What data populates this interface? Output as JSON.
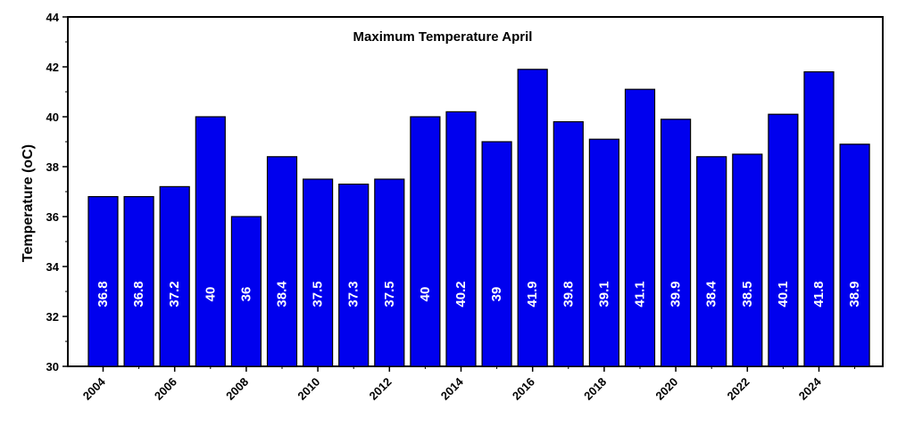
{
  "chart_data": {
    "type": "bar",
    "title": "Maximum Temperature April",
    "xlabel": "",
    "ylabel": "Temperature (oC)",
    "ylim": [
      30,
      44
    ],
    "yticks": [
      30,
      32,
      34,
      36,
      38,
      40,
      42,
      44
    ],
    "categories": [
      "2004",
      "2005",
      "2006",
      "2007",
      "2008",
      "2009",
      "2010",
      "2011",
      "2012",
      "2013",
      "2014",
      "2015",
      "2016",
      "2017",
      "2018",
      "2019",
      "2020",
      "2021",
      "2022",
      "2023",
      "2024",
      "2025"
    ],
    "xtick_labels": [
      "2004",
      "2006",
      "2008",
      "2010",
      "2012",
      "2014",
      "2016",
      "2018",
      "2020",
      "2022",
      "2024"
    ],
    "values": [
      36.8,
      36.8,
      37.2,
      40,
      36,
      38.4,
      37.5,
      37.3,
      37.5,
      40,
      40.2,
      39,
      41.9,
      39.8,
      39.1,
      41.1,
      39.9,
      38.4,
      38.5,
      40.1,
      41.8,
      38.9
    ],
    "data_labels": [
      "36.8",
      "36.8",
      "37.2",
      "40",
      "36",
      "38.4",
      "37.5",
      "37.3",
      "37.5",
      "40",
      "40.2",
      "39",
      "41.9",
      "39.8",
      "39.1",
      "41.1",
      "39.9",
      "38.4",
      "38.5",
      "40.1",
      "41.8",
      "38.9"
    ],
    "bar_color": "#0000ee",
    "grid": false,
    "legend": "none"
  }
}
